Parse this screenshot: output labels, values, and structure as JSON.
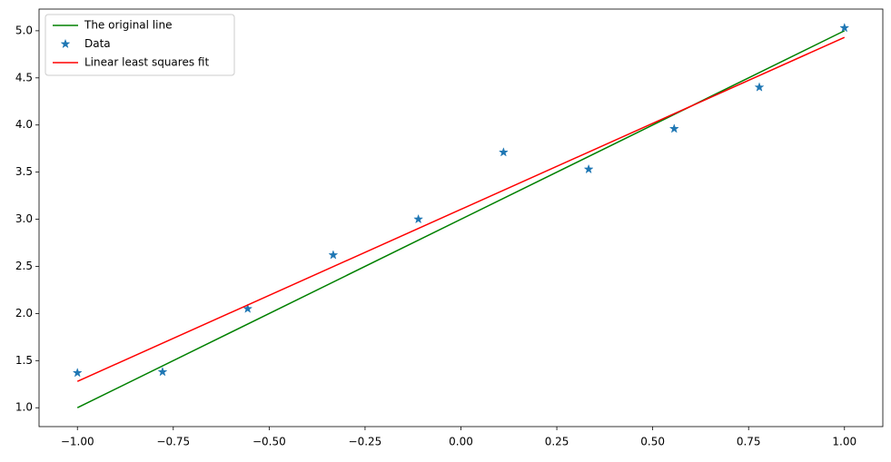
{
  "chart_data": {
    "type": "line",
    "series": [
      {
        "name": "The original line",
        "type": "line",
        "color": "#008000",
        "x": [
          -1,
          1
        ],
        "values": [
          1.0,
          5.0
        ]
      },
      {
        "name": "Data",
        "type": "scatter",
        "marker": "star",
        "color": "#1f77b4",
        "x": [
          -1,
          -0.778,
          -0.556,
          -0.333,
          -0.111,
          0.111,
          0.333,
          0.556,
          0.778,
          1
        ],
        "values": [
          1.37,
          1.38,
          2.05,
          2.62,
          3.0,
          3.71,
          3.53,
          3.96,
          4.4,
          5.03
        ]
      },
      {
        "name": "Linear least squares fit",
        "type": "line",
        "color": "#ff0000",
        "x": [
          -1,
          1
        ],
        "values": [
          1.28,
          4.93
        ]
      }
    ],
    "xlim": [
      -1.1,
      1.1
    ],
    "ylim": [
      0.8,
      5.23
    ],
    "xticks": [
      {
        "value": -1,
        "label": "−1.00"
      },
      {
        "value": -0.75,
        "label": "−0.75"
      },
      {
        "value": -0.5,
        "label": "−0.50"
      },
      {
        "value": -0.25,
        "label": "−0.25"
      },
      {
        "value": 0,
        "label": "0.00"
      },
      {
        "value": 0.25,
        "label": "0.25"
      },
      {
        "value": 0.5,
        "label": "0.50"
      },
      {
        "value": 0.75,
        "label": "0.75"
      },
      {
        "value": 1,
        "label": "1.00"
      }
    ],
    "yticks": [
      {
        "value": 1,
        "label": "1.0"
      },
      {
        "value": 1.5,
        "label": "1.5"
      },
      {
        "value": 2,
        "label": "2.0"
      },
      {
        "value": 2.5,
        "label": "2.5"
      },
      {
        "value": 3,
        "label": "3.0"
      },
      {
        "value": 3.5,
        "label": "3.5"
      },
      {
        "value": 4,
        "label": "4.0"
      },
      {
        "value": 4.5,
        "label": "4.5"
      },
      {
        "value": 5,
        "label": "5.0"
      }
    ],
    "legend": "upper left",
    "grid": false
  }
}
